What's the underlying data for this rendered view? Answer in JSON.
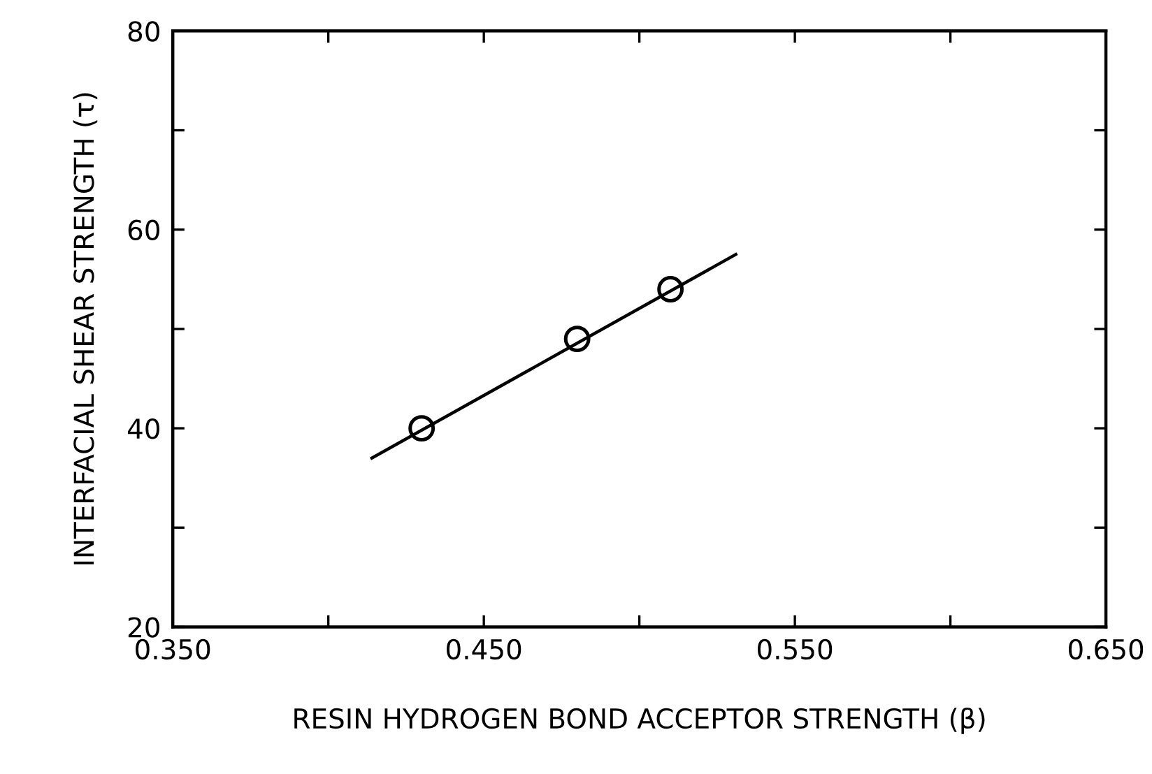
{
  "chart_data": {
    "type": "scatter",
    "xlabel": "RESIN HYDROGEN BOND ACCEPTOR STRENGTH (β)",
    "ylabel": "INTERFACIAL SHEAR STRENGTH (τ)",
    "xlim": [
      0.35,
      0.65
    ],
    "ylim": [
      20,
      80
    ],
    "xticks": [
      {
        "value": 0.35,
        "label": "0.350"
      },
      {
        "value": 0.4,
        "label": null
      },
      {
        "value": 0.45,
        "label": "0.450"
      },
      {
        "value": 0.5,
        "label": null
      },
      {
        "value": 0.55,
        "label": "0.550"
      },
      {
        "value": 0.6,
        "label": null
      },
      {
        "value": 0.65,
        "label": "0.650"
      }
    ],
    "yticks": [
      20,
      {
        "value": 30,
        "label": null
      },
      40,
      {
        "value": 50,
        "label": null
      },
      60,
      {
        "value": 70,
        "label": null
      },
      80
    ],
    "grid": false,
    "legend": false,
    "series": [
      {
        "color": "#000000",
        "marker": "circle",
        "x": [
          0.43,
          0.48,
          0.51
        ],
        "values": [
          40,
          49,
          54
        ]
      },
      {
        "type": "line",
        "color": "#000000",
        "marker": "none",
        "line_style": "solid",
        "x": [
          0.414,
          0.531
        ],
        "values": [
          37,
          57.5
        ]
      }
    ]
  }
}
